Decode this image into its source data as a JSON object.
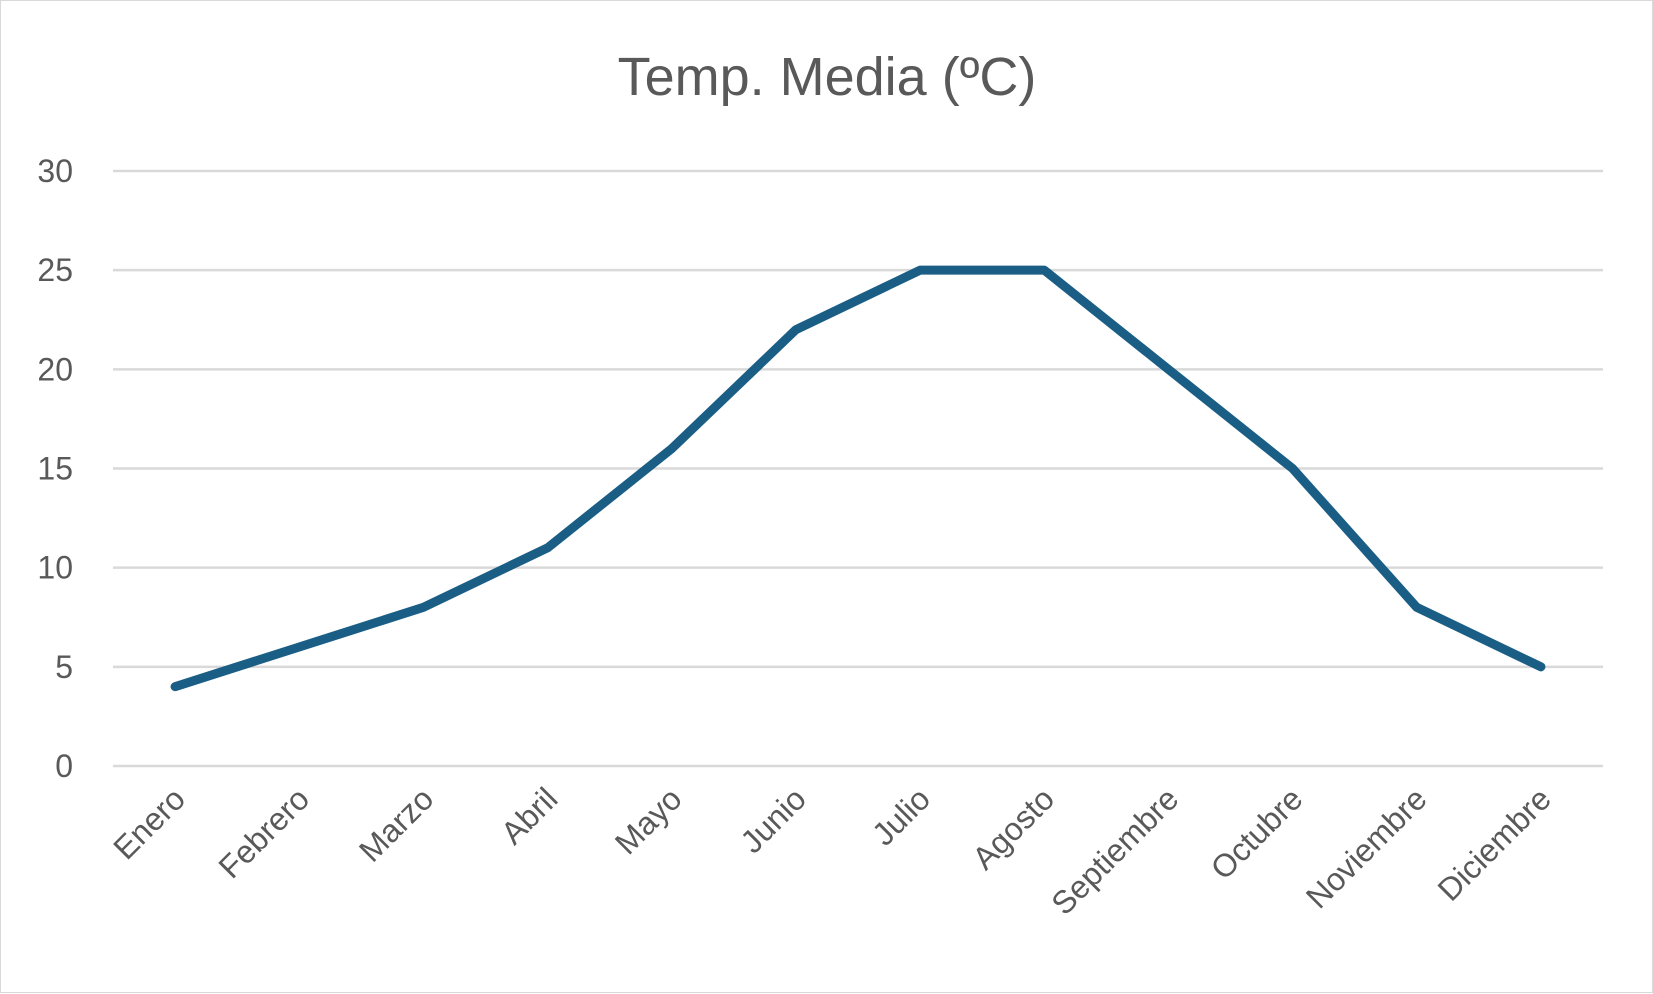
{
  "chart_data": {
    "type": "line",
    "title": "Temp. Media (ºC)",
    "categories": [
      "Enero",
      "Febrero",
      "Marzo",
      "Abril",
      "Mayo",
      "Junio",
      "Julio",
      "Agosto",
      "Septiembre",
      "Octubre",
      "Noviembre",
      "Diciembre"
    ],
    "series": [
      {
        "values": [
          4,
          6,
          8,
          11,
          16,
          22,
          25,
          25,
          20,
          15,
          8,
          5
        ]
      }
    ],
    "ylim": [
      0,
      30
    ],
    "yticks": [
      0,
      5,
      10,
      15,
      20,
      25,
      30
    ],
    "grid": true,
    "legend": "none",
    "line_color": "#1a5e85"
  }
}
